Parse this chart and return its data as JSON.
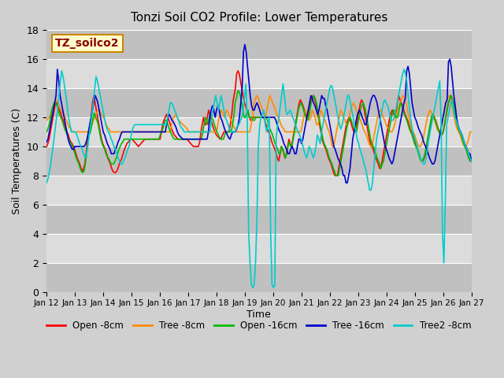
{
  "title": "Tonzi Soil CO2 Profile: Lower Temperatures",
  "xlabel": "Time",
  "ylabel": "Soil Temperatures (C)",
  "ylim": [
    0,
    18
  ],
  "yticks": [
    0,
    2,
    4,
    6,
    8,
    10,
    12,
    14,
    16,
    18
  ],
  "annotation_text": "TZ_soilco2",
  "annotation_color": "#8b0000",
  "annotation_bg": "#ffffcc",
  "annotation_border": "#cc8800",
  "legend_entries": [
    "Open -8cm",
    "Tree -8cm",
    "Open -16cm",
    "Tree -16cm",
    "Tree2 -8cm"
  ],
  "line_colors": [
    "#ff0000",
    "#ff8c00",
    "#00bb00",
    "#0000cc",
    "#00cccc"
  ],
  "x_labels": [
    "Jan 12",
    "Jan 13",
    "Jan 14",
    "Jan 15",
    "Jan 16",
    "Jan 17",
    "Jan 18",
    "Jan 19",
    "Jan 20",
    "Jan 21",
    "Jan 22",
    "Jan 23",
    "Jan 24",
    "Jan 25",
    "Jan 26",
    "Jan 27"
  ],
  "open_8cm": [
    10.0,
    10.2,
    10.5,
    11.0,
    11.5,
    12.0,
    12.5,
    13.0,
    13.0,
    12.8,
    12.5,
    12.3,
    12.0,
    11.8,
    11.5,
    11.2,
    11.0,
    10.8,
    10.5,
    10.3,
    10.2,
    10.0,
    9.8,
    9.5,
    9.2,
    9.0,
    8.8,
    8.5,
    8.3,
    8.5,
    8.8,
    9.5,
    10.5,
    11.0,
    11.5,
    12.0,
    13.0,
    13.5,
    13.0,
    12.5,
    12.0,
    11.5,
    11.0,
    10.5,
    10.2,
    10.0,
    9.8,
    9.5,
    9.2,
    9.0,
    8.8,
    8.5,
    8.3,
    8.2,
    8.2,
    8.3,
    8.5,
    8.8,
    9.0,
    9.2,
    9.5,
    9.8,
    10.0,
    10.2,
    10.3,
    10.4,
    10.5,
    10.5,
    10.4,
    10.3,
    10.2,
    10.1,
    10.0,
    10.1,
    10.2,
    10.3,
    10.4,
    10.5,
    10.5,
    10.5,
    10.5,
    10.5,
    10.5,
    10.5,
    10.5,
    10.5,
    10.5,
    10.5,
    10.5,
    10.5,
    11.0,
    11.5,
    11.8,
    12.0,
    12.2,
    12.0,
    11.8,
    11.5,
    11.2,
    11.0,
    10.8,
    10.7,
    10.6,
    10.5,
    10.5,
    10.5,
    10.5,
    10.5,
    10.5,
    10.5,
    10.5,
    10.4,
    10.3,
    10.2,
    10.1,
    10.0,
    10.0,
    10.0,
    10.0,
    10.0,
    10.3,
    11.0,
    11.5,
    12.0,
    11.5,
    11.5,
    12.0,
    12.5,
    12.2,
    11.8,
    11.5,
    11.2,
    11.0,
    10.8,
    10.7,
    10.6,
    10.5,
    10.6,
    10.8,
    11.0,
    11.0,
    11.0,
    11.0,
    11.0,
    11.5,
    12.0,
    13.0,
    13.5,
    14.0,
    15.0,
    15.2,
    15.0,
    14.5,
    14.0,
    13.5,
    13.0,
    12.8,
    12.5,
    12.2,
    12.0,
    11.8,
    11.8,
    12.0,
    12.0,
    12.0,
    12.0,
    12.0,
    12.0,
    12.0,
    12.0,
    12.0,
    11.8,
    11.5,
    11.2,
    11.0,
    10.8,
    10.5,
    10.2,
    10.0,
    9.8,
    9.5,
    9.2,
    9.0,
    9.5,
    10.0,
    9.8,
    9.5,
    9.2,
    9.5,
    10.0,
    10.5,
    10.2,
    10.0,
    10.5,
    11.0,
    11.5,
    12.0,
    12.5,
    13.0,
    13.2,
    13.0,
    12.8,
    12.5,
    12.2,
    12.0,
    12.0,
    12.5,
    13.0,
    13.3,
    13.5,
    13.3,
    13.0,
    12.5,
    12.0,
    11.5,
    11.0,
    10.5,
    10.2,
    10.0,
    9.8,
    9.5,
    9.2,
    9.0,
    8.8,
    8.5,
    8.2,
    8.0,
    8.0,
    8.0,
    8.5,
    9.0,
    9.5,
    10.0,
    10.5,
    11.0,
    11.5,
    11.8,
    12.0,
    11.8,
    11.5,
    11.2,
    11.0,
    11.0,
    11.5,
    12.0,
    12.5,
    13.0,
    13.2,
    13.0,
    12.5,
    12.0,
    11.5,
    11.0,
    10.5,
    10.2,
    10.0,
    9.8,
    9.5,
    9.2,
    9.0,
    8.8,
    8.5,
    8.5,
    9.0,
    9.5,
    10.0,
    10.5,
    11.0,
    11.5,
    12.0,
    12.3,
    12.5,
    12.3,
    12.0,
    12.3,
    13.0,
    13.5,
    13.2,
    13.0,
    12.8,
    12.5,
    12.2,
    12.0,
    11.8,
    11.5,
    11.2,
    11.0,
    10.8,
    10.5,
    10.2,
    10.0,
    9.8,
    9.5,
    9.2,
    9.0,
    9.0,
    9.2,
    9.5,
    10.0,
    10.5,
    11.0,
    11.5,
    12.0,
    12.2,
    12.0,
    11.8,
    11.5,
    11.2,
    11.0,
    10.8,
    10.8,
    11.0,
    11.5,
    12.0,
    12.5,
    13.0,
    13.2,
    13.5,
    13.3,
    13.0,
    12.5,
    12.0,
    11.5,
    11.2,
    11.0,
    10.8,
    10.5,
    10.2,
    10.0,
    9.8,
    9.5,
    9.2,
    9.0,
    9.0
  ],
  "tree_8cm": [
    11.8,
    11.9,
    12.0,
    12.2,
    12.5,
    12.8,
    13.0,
    13.2,
    13.0,
    12.8,
    12.5,
    12.3,
    12.2,
    12.0,
    11.8,
    11.5,
    11.3,
    11.2,
    11.0,
    11.0,
    11.0,
    11.0,
    11.0,
    11.0,
    11.0,
    11.0,
    11.0,
    11.0,
    11.0,
    11.0,
    11.0,
    11.2,
    11.5,
    11.8,
    12.0,
    12.2,
    12.5,
    12.5,
    12.3,
    12.2,
    12.0,
    11.8,
    11.5,
    11.3,
    11.2,
    11.0,
    11.0,
    11.0,
    11.0,
    11.0,
    11.0,
    11.0,
    11.0,
    11.0,
    11.0,
    11.0,
    11.0,
    11.0,
    11.0,
    11.0,
    11.0,
    11.0,
    11.0,
    11.0,
    11.0,
    11.0,
    11.0,
    11.0,
    11.0,
    11.0,
    11.0,
    11.0,
    11.0,
    11.0,
    11.0,
    11.0,
    11.0,
    11.0,
    11.0,
    11.0,
    11.0,
    11.0,
    11.0,
    11.0,
    11.0,
    11.0,
    11.0,
    11.0,
    11.5,
    12.0,
    12.0,
    12.2,
    12.0,
    11.8,
    11.7,
    11.6,
    11.5,
    11.4,
    11.3,
    11.2,
    11.0,
    11.0,
    11.0,
    11.0,
    11.0,
    11.0,
    11.0,
    11.0,
    11.0,
    11.0,
    11.0,
    11.0,
    11.0,
    11.0,
    11.0,
    11.0,
    11.0,
    11.0,
    11.0,
    11.0,
    11.2,
    11.8,
    12.2,
    12.5,
    12.3,
    12.0,
    12.3,
    12.5,
    12.3,
    12.0,
    11.8,
    11.5,
    11.3,
    11.2,
    11.0,
    11.0,
    11.0,
    11.0,
    11.0,
    11.0,
    11.0,
    11.0,
    11.0,
    11.0,
    11.5,
    12.0,
    13.0,
    13.3,
    13.5,
    13.3,
    13.0,
    12.8,
    12.5,
    12.3,
    12.0,
    12.5,
    13.0,
    13.5,
    13.3,
    13.0,
    12.8,
    12.5,
    12.2,
    12.0,
    11.8,
    11.5,
    11.3,
    11.2,
    11.0,
    11.0,
    11.0,
    11.0,
    11.0,
    11.0,
    11.0,
    11.0,
    11.0,
    11.0,
    11.0,
    11.0,
    11.5,
    12.0,
    12.5,
    12.3,
    12.0,
    11.8,
    12.0,
    12.5,
    12.3,
    12.0,
    11.5,
    11.5,
    12.0,
    12.5,
    12.3,
    12.0,
    11.8,
    11.5,
    11.2,
    11.0,
    10.5,
    10.0,
    10.0,
    10.5,
    11.0,
    11.5,
    12.0,
    12.5,
    12.3,
    12.0,
    11.8,
    11.5,
    11.5,
    12.0,
    12.5,
    12.8,
    13.0,
    12.8,
    12.5,
    12.2,
    12.0,
    11.8,
    11.5,
    11.2,
    11.0,
    10.8,
    10.5,
    10.2,
    10.0,
    10.0,
    10.5,
    11.0,
    11.5,
    12.0,
    12.3,
    12.5,
    12.3,
    12.0,
    11.8,
    11.5,
    11.3,
    11.2,
    11.0,
    11.0,
    11.2,
    11.5,
    12.0,
    12.5,
    12.8,
    13.0,
    13.3,
    13.5,
    13.3,
    13.0,
    12.5,
    12.0,
    11.5,
    11.2,
    11.0,
    10.8,
    10.5,
    10.2,
    10.0,
    10.0,
    10.2,
    10.5,
    11.0,
    11.5,
    12.0,
    12.3,
    12.5,
    12.3,
    12.0,
    11.8,
    11.5,
    11.2,
    11.0,
    11.0,
    11.5,
    12.0,
    12.5,
    13.0,
    13.3,
    13.5,
    13.3,
    13.0,
    12.5,
    12.0,
    11.5,
    11.2,
    11.0,
    10.8,
    10.5,
    10.2,
    10.0,
    10.0,
    10.2,
    10.5,
    11.0,
    11.0
  ],
  "open_16cm": [
    11.0,
    11.2,
    11.5,
    12.0,
    12.5,
    12.8,
    13.0,
    13.0,
    12.8,
    12.5,
    12.2,
    12.0,
    11.8,
    11.5,
    11.2,
    11.0,
    10.8,
    10.5,
    10.3,
    10.2,
    10.0,
    9.8,
    9.5,
    9.2,
    9.0,
    8.8,
    8.5,
    8.3,
    8.2,
    8.3,
    8.8,
    9.5,
    10.2,
    10.8,
    11.0,
    11.5,
    12.0,
    12.3,
    12.0,
    11.8,
    11.5,
    11.0,
    10.5,
    10.2,
    10.0,
    9.8,
    9.5,
    9.3,
    9.2,
    9.0,
    8.8,
    8.8,
    8.8,
    9.0,
    9.2,
    9.5,
    9.8,
    10.0,
    10.2,
    10.3,
    10.5,
    10.5,
    10.5,
    10.5,
    10.5,
    10.5,
    10.5,
    10.5,
    10.5,
    10.5,
    10.5,
    10.5,
    10.5,
    10.5,
    10.5,
    10.5,
    10.5,
    10.5,
    10.5,
    10.5,
    10.5,
    10.5,
    10.5,
    10.5,
    10.5,
    10.5,
    10.5,
    10.5,
    10.8,
    11.0,
    11.2,
    11.5,
    11.8,
    11.8,
    11.5,
    11.2,
    11.0,
    10.8,
    10.6,
    10.5,
    10.5,
    10.5,
    10.5,
    10.5,
    10.5,
    10.5,
    10.5,
    10.5,
    10.5,
    10.5,
    10.5,
    10.5,
    10.5,
    10.5,
    10.5,
    10.5,
    10.5,
    10.5,
    10.5,
    10.5,
    10.5,
    11.0,
    11.5,
    12.0,
    11.8,
    11.5,
    12.0,
    12.3,
    12.0,
    11.8,
    11.5,
    11.2,
    11.0,
    10.8,
    10.6,
    10.5,
    10.5,
    10.5,
    10.8,
    11.0,
    11.0,
    11.0,
    11.0,
    11.0,
    11.5,
    12.0,
    13.0,
    13.3,
    13.8,
    13.8,
    13.5,
    13.0,
    12.5,
    12.0,
    12.0,
    12.3,
    12.5,
    12.0,
    12.0,
    12.0,
    11.8,
    11.8,
    12.0,
    12.0,
    12.0,
    12.0,
    12.0,
    12.0,
    12.0,
    12.0,
    12.0,
    11.8,
    11.5,
    11.2,
    11.0,
    10.8,
    10.5,
    10.2,
    10.0,
    9.8,
    9.5,
    9.5,
    10.0,
    9.8,
    9.5,
    9.2,
    9.5,
    10.0,
    10.3,
    10.0,
    10.0,
    10.5,
    11.0,
    11.5,
    12.0,
    12.5,
    12.8,
    13.0,
    12.8,
    12.5,
    12.2,
    12.0,
    11.8,
    12.0,
    12.5,
    13.0,
    13.3,
    13.5,
    13.3,
    13.0,
    12.5,
    12.0,
    11.5,
    11.0,
    10.5,
    10.2,
    10.0,
    9.8,
    9.5,
    9.2,
    9.0,
    8.8,
    8.5,
    8.3,
    8.0,
    8.0,
    8.0,
    8.5,
    9.0,
    9.5,
    10.0,
    10.5,
    11.0,
    11.5,
    11.8,
    12.0,
    11.8,
    11.5,
    11.3,
    11.0,
    11.0,
    11.5,
    12.0,
    12.5,
    12.8,
    13.0,
    12.8,
    12.5,
    12.0,
    11.5,
    11.0,
    10.5,
    10.2,
    10.0,
    9.8,
    9.5,
    9.2,
    9.0,
    8.8,
    8.5,
    8.8,
    9.0,
    9.5,
    10.0,
    10.5,
    11.0,
    11.5,
    12.0,
    12.3,
    12.5,
    12.3,
    12.0,
    12.0,
    12.5,
    13.0,
    12.8,
    12.5,
    12.2,
    12.0,
    11.8,
    11.5,
    11.2,
    11.0,
    10.8,
    10.5,
    10.2,
    10.0,
    9.8,
    9.5,
    9.2,
    9.0,
    9.0,
    9.2,
    9.5,
    10.0,
    10.5,
    11.0,
    11.5,
    12.0,
    12.2,
    12.0,
    11.8,
    11.5,
    11.2,
    11.0,
    10.8,
    10.8,
    11.0,
    11.5,
    12.0,
    12.5,
    13.0,
    13.2,
    13.5,
    13.3,
    13.0,
    12.5,
    12.0,
    11.5,
    11.2,
    11.0,
    10.8,
    10.5,
    10.2,
    10.0,
    9.8,
    9.5,
    9.2,
    9.0,
    9.0
  ],
  "tree_16cm": [
    10.3,
    10.5,
    11.0,
    11.5,
    12.0,
    12.5,
    13.0,
    13.5,
    15.3,
    14.5,
    13.5,
    13.0,
    12.5,
    12.0,
    11.5,
    11.0,
    10.5,
    10.2,
    10.0,
    9.8,
    9.8,
    10.0,
    10.0,
    10.0,
    10.0,
    10.0,
    10.0,
    10.0,
    10.0,
    10.2,
    10.5,
    11.0,
    11.5,
    12.0,
    12.5,
    13.0,
    13.5,
    13.3,
    13.0,
    12.5,
    12.0,
    11.5,
    11.0,
    10.8,
    10.5,
    10.2,
    10.0,
    9.8,
    9.5,
    9.5,
    9.5,
    9.8,
    10.0,
    10.3,
    10.5,
    10.8,
    11.0,
    11.0,
    11.0,
    11.0,
    11.0,
    11.0,
    11.0,
    11.0,
    11.0,
    11.0,
    11.0,
    11.0,
    11.0,
    11.0,
    11.0,
    11.0,
    11.0,
    11.0,
    11.0,
    11.0,
    11.0,
    11.0,
    11.0,
    11.0,
    11.0,
    11.0,
    11.0,
    11.0,
    11.0,
    11.0,
    11.0,
    11.0,
    11.0,
    11.5,
    12.0,
    12.2,
    12.0,
    11.8,
    11.7,
    11.5,
    11.3,
    11.0,
    10.8,
    10.7,
    10.6,
    10.5,
    10.5,
    10.5,
    10.5,
    10.5,
    10.5,
    10.5,
    10.5,
    10.5,
    10.5,
    10.5,
    10.5,
    10.5,
    10.5,
    10.5,
    10.5,
    10.5,
    10.5,
    10.5,
    11.0,
    12.0,
    12.5,
    12.8,
    12.5,
    12.0,
    12.5,
    12.8,
    12.5,
    12.0,
    11.8,
    11.5,
    11.2,
    11.0,
    10.8,
    10.6,
    10.5,
    10.8,
    11.0,
    11.0,
    11.0,
    11.2,
    11.5,
    12.0,
    13.0,
    14.0,
    16.5,
    17.0,
    16.5,
    15.5,
    14.5,
    13.5,
    12.8,
    12.5,
    12.5,
    12.8,
    13.0,
    12.8,
    12.5,
    12.2,
    12.0,
    12.0,
    12.0,
    12.0,
    12.0,
    12.0,
    12.0,
    12.0,
    12.0,
    12.0,
    11.8,
    11.5,
    11.2,
    11.0,
    10.8,
    10.5,
    10.2,
    10.0,
    9.8,
    9.5,
    9.5,
    9.8,
    10.0,
    9.8,
    9.5,
    9.5,
    10.0,
    10.5,
    10.5,
    10.2,
    10.5,
    11.0,
    11.5,
    12.0,
    12.5,
    13.0,
    13.5,
    13.3,
    13.0,
    12.8,
    12.5,
    12.2,
    12.5,
    13.0,
    13.5,
    13.3,
    13.3,
    12.8,
    12.5,
    12.0,
    11.5,
    11.0,
    10.5,
    10.0,
    9.8,
    9.5,
    9.2,
    9.0,
    8.8,
    8.5,
    8.0,
    8.0,
    7.5,
    7.5,
    8.0,
    8.5,
    9.5,
    10.5,
    11.0,
    11.5,
    12.0,
    12.3,
    12.5,
    12.3,
    12.0,
    11.8,
    11.5,
    11.5,
    12.0,
    12.5,
    13.0,
    13.3,
    13.5,
    13.5,
    13.3,
    13.0,
    12.5,
    12.0,
    11.5,
    11.0,
    10.5,
    10.0,
    9.8,
    9.5,
    9.2,
    9.0,
    8.8,
    9.0,
    9.5,
    10.0,
    10.5,
    11.0,
    11.5,
    12.0,
    12.5,
    13.0,
    13.3,
    15.2,
    15.5,
    15.0,
    14.0,
    13.0,
    12.5,
    12.0,
    11.8,
    11.5,
    11.2,
    11.0,
    10.8,
    10.5,
    10.2,
    10.0,
    9.8,
    9.5,
    9.2,
    9.0,
    8.8,
    8.8,
    9.0,
    9.5,
    10.0,
    10.5,
    11.0,
    11.5,
    12.0,
    12.5,
    13.0,
    13.2,
    15.8,
    16.0,
    15.5,
    14.5,
    13.5,
    12.8,
    12.0,
    11.5,
    11.2,
    11.0,
    10.8,
    10.5,
    10.2,
    10.0,
    9.8,
    9.5,
    9.5,
    9.0
  ],
  "tree2_8cm": [
    7.5,
    7.8,
    8.2,
    8.8,
    9.5,
    10.2,
    11.0,
    11.8,
    12.5,
    13.5,
    14.5,
    15.2,
    14.8,
    14.2,
    13.5,
    12.8,
    12.0,
    11.5,
    11.0,
    11.0,
    11.0,
    11.0,
    10.8,
    10.5,
    10.2,
    10.0,
    9.8,
    9.5,
    9.2,
    9.5,
    10.0,
    10.8,
    11.5,
    12.2,
    13.0,
    14.0,
    14.8,
    14.5,
    14.0,
    13.5,
    13.0,
    12.5,
    12.0,
    11.5,
    11.2,
    11.0,
    10.8,
    10.5,
    10.3,
    10.0,
    9.8,
    9.5,
    9.2,
    9.0,
    8.8,
    8.8,
    9.0,
    9.2,
    9.5,
    9.8,
    10.0,
    10.5,
    11.0,
    11.3,
    11.5,
    11.5,
    11.5,
    11.5,
    11.5,
    11.5,
    11.5,
    11.5,
    11.5,
    11.5,
    11.5,
    11.5,
    11.5,
    11.5,
    11.5,
    11.5,
    11.5,
    11.5,
    11.5,
    11.5,
    11.5,
    11.5,
    11.5,
    11.5,
    12.0,
    12.5,
    13.0,
    13.0,
    12.8,
    12.5,
    12.3,
    12.0,
    11.8,
    11.5,
    11.3,
    11.2,
    11.0,
    11.0,
    11.0,
    11.0,
    11.0,
    11.0,
    11.0,
    11.0,
    11.0,
    11.0,
    11.0,
    11.0,
    11.0,
    11.0,
    11.0,
    11.0,
    11.0,
    11.0,
    11.0,
    11.0,
    12.0,
    12.5,
    13.0,
    13.5,
    13.0,
    12.5,
    13.0,
    13.5,
    13.0,
    12.5,
    12.0,
    11.8,
    11.5,
    11.2,
    11.0,
    11.0,
    11.0,
    11.0,
    11.2,
    11.5,
    11.5,
    11.8,
    12.0,
    12.5,
    13.5,
    14.3,
    11.5,
    4.0,
    2.0,
    0.5,
    0.3,
    0.5,
    2.0,
    5.0,
    10.0,
    11.5,
    12.0,
    12.2,
    12.5,
    11.5,
    11.0,
    11.5,
    12.0,
    4.0,
    0.5,
    0.3,
    0.5,
    10.5,
    11.5,
    12.0,
    12.8,
    13.5,
    14.3,
    13.5,
    12.5,
    12.2,
    12.3,
    12.5,
    12.3,
    12.0,
    11.8,
    11.5,
    11.2,
    11.0,
    10.8,
    10.5,
    10.2,
    9.8,
    9.5,
    9.2,
    9.5,
    10.0,
    9.8,
    9.5,
    9.2,
    9.5,
    10.0,
    10.8,
    10.5,
    10.2,
    11.0,
    11.5,
    12.0,
    12.5,
    13.0,
    13.5,
    14.0,
    14.2,
    14.0,
    13.5,
    13.0,
    12.5,
    12.0,
    11.5,
    11.2,
    11.5,
    12.0,
    12.5,
    13.0,
    13.5,
    13.5,
    13.0,
    12.5,
    12.0,
    11.5,
    11.0,
    10.5,
    10.2,
    9.8,
    9.5,
    9.2,
    8.8,
    8.5,
    8.0,
    7.5,
    7.0,
    7.0,
    7.5,
    8.5,
    9.5,
    10.5,
    11.0,
    11.5,
    12.0,
    12.5,
    13.0,
    13.2,
    13.0,
    12.8,
    12.5,
    12.0,
    11.8,
    11.8,
    12.0,
    12.5,
    13.0,
    13.5,
    14.0,
    14.5,
    15.0,
    15.3,
    15.0,
    14.5,
    13.5,
    12.5,
    11.8,
    11.2,
    10.8,
    10.5,
    10.2,
    9.8,
    9.5,
    9.2,
    9.0,
    8.8,
    8.8,
    9.2,
    9.8,
    10.5,
    11.0,
    11.5,
    12.0,
    12.5,
    13.0,
    13.5,
    14.0,
    14.5,
    11.5,
    4.0,
    2.0,
    6.0,
    11.5,
    12.0,
    12.5,
    13.0,
    13.2,
    12.5,
    12.0,
    11.8,
    11.5,
    11.2,
    11.0,
    10.8,
    10.5,
    10.2,
    10.0,
    9.8,
    9.5,
    9.2,
    9.0
  ]
}
